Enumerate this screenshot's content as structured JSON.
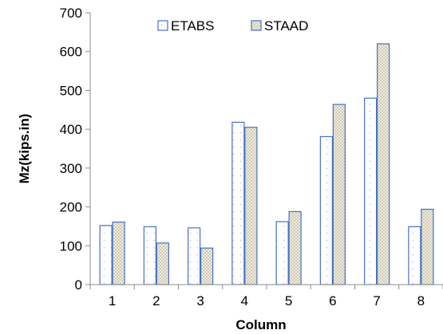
{
  "chart_data": {
    "type": "bar",
    "title": "",
    "xlabel": "Column",
    "ylabel": "Mz(kips.in)",
    "categories": [
      "1",
      "2",
      "3",
      "4",
      "5",
      "6",
      "7",
      "8"
    ],
    "series": [
      {
        "name": "ETABS",
        "values": [
          152,
          149,
          146,
          418,
          162,
          381,
          480,
          149
        ],
        "color": "#4472C4",
        "fill": "#ffffff"
      },
      {
        "name": "STAAD",
        "values": [
          161,
          107,
          94,
          405,
          188,
          464,
          620,
          194
        ],
        "color": "#4472C4",
        "fill": "#eae6d8"
      }
    ],
    "ylim": [
      0,
      700
    ],
    "yticks": [
      0,
      100,
      200,
      300,
      400,
      500,
      600,
      700
    ],
    "legend_position": "top",
    "grid": false
  }
}
